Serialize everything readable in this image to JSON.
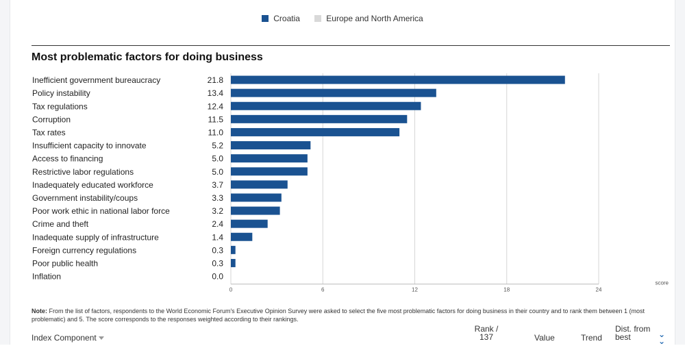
{
  "legend": [
    {
      "label": "Croatia",
      "color": "#1a5291"
    },
    {
      "label": "Europe and North America",
      "color": "#d9d9d9"
    }
  ],
  "chart_data": {
    "type": "bar",
    "orientation": "horizontal",
    "title": "Most problematic factors for doing business",
    "xlabel": "score",
    "xlim": [
      0,
      24
    ],
    "xticks": [
      0,
      6,
      12,
      18,
      24
    ],
    "grid": true,
    "legend_position": "top-center",
    "series": [
      {
        "name": "Croatia",
        "color": "#1a5291"
      }
    ],
    "categories": [
      "Inefficient government bureaucracy",
      "Policy instability",
      "Tax regulations",
      "Corruption",
      "Tax rates",
      "Insufficient capacity to innovate",
      "Access to financing",
      "Restrictive labor regulations",
      "Inadequately educated workforce",
      "Government instability/coups",
      "Poor work ethic in national labor force",
      "Crime and theft",
      "Inadequate supply of infrastructure",
      "Foreign currency regulations",
      "Poor public health",
      "Inflation"
    ],
    "values": [
      21.8,
      13.4,
      12.4,
      11.5,
      11.0,
      5.2,
      5.0,
      5.0,
      3.7,
      3.3,
      3.2,
      2.4,
      1.4,
      0.3,
      0.3,
      0.0
    ],
    "value_labels": [
      "21.8",
      "13.4",
      "12.4",
      "11.5",
      "11.0",
      "5.2",
      "5.0",
      "5.0",
      "3.7",
      "3.3",
      "3.2",
      "2.4",
      "1.4",
      "0.3",
      "0.3",
      "0.0"
    ]
  },
  "note": {
    "prefix": "Note:",
    "text": "From the list of factors, respondents to the World Economic Forum's Executive Opinion Survey were asked to select the five most problematic factors for doing business in their country and to rank them between 1 (most problematic) and 5. The score corresponds to the responses weighted according to their rankings."
  },
  "table_header": {
    "index_component": "Index Component",
    "rank_line1": "Rank /",
    "rank_line2": "137",
    "value": "Value",
    "trend": "Trend",
    "dist_line1": "Dist. from",
    "dist_line2": "best"
  }
}
